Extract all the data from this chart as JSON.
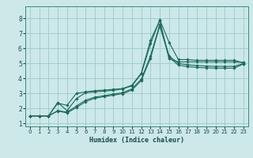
{
  "bg_color": "#cce8e8",
  "grid_color": "#9ec8c8",
  "line_color": "#1a6a5a",
  "xlabel": "Humidex (Indice chaleur)",
  "xlim": [
    -0.5,
    23.5
  ],
  "ylim": [
    0.8,
    8.8
  ],
  "xticks": [
    0,
    1,
    2,
    3,
    4,
    5,
    6,
    7,
    8,
    9,
    10,
    11,
    12,
    13,
    14,
    15,
    16,
    17,
    18,
    19,
    20,
    21,
    22,
    23
  ],
  "yticks": [
    1,
    2,
    3,
    4,
    5,
    6,
    7,
    8
  ],
  "series": [
    [
      1.5,
      1.5,
      1.5,
      2.4,
      1.85,
      2.65,
      3.05,
      3.1,
      3.15,
      3.2,
      3.3,
      3.5,
      4.3,
      6.3,
      7.9,
      6.4,
      5.25,
      5.25,
      5.2,
      5.2,
      5.2,
      5.2,
      5.2,
      5.05
    ],
    [
      1.5,
      1.5,
      1.5,
      2.35,
      2.2,
      3.0,
      3.1,
      3.18,
      3.22,
      3.27,
      3.32,
      3.55,
      4.35,
      6.55,
      7.85,
      5.3,
      5.1,
      5.1,
      5.1,
      5.1,
      5.1,
      5.1,
      5.1,
      5.05
    ],
    [
      1.5,
      1.5,
      1.5,
      1.85,
      1.75,
      2.15,
      2.55,
      2.75,
      2.85,
      2.95,
      3.05,
      3.3,
      3.95,
      5.5,
      7.6,
      5.5,
      5.0,
      4.9,
      4.85,
      4.82,
      4.8,
      4.8,
      4.8,
      4.98
    ],
    [
      1.5,
      1.5,
      1.5,
      1.82,
      1.7,
      2.05,
      2.45,
      2.68,
      2.78,
      2.88,
      2.98,
      3.22,
      3.85,
      5.35,
      7.5,
      5.4,
      4.88,
      4.78,
      4.73,
      4.7,
      4.68,
      4.68,
      4.68,
      4.95
    ]
  ]
}
